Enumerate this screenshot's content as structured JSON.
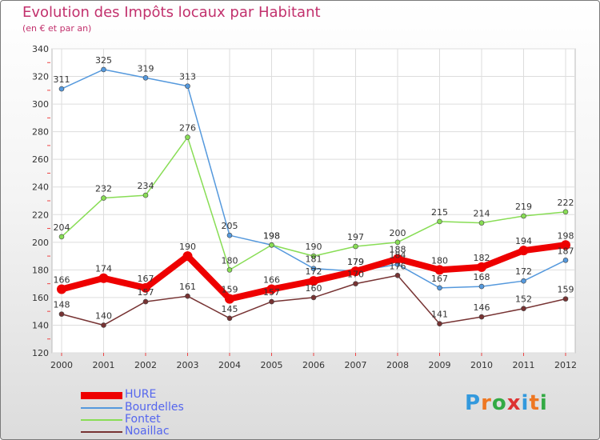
{
  "chart_data": {
    "type": "line",
    "title": "Evolution des Impôts locaux par Habitant",
    "subtitle": "(en € et par an)",
    "x": [
      "2000",
      "2001",
      "2002",
      "2003",
      "2004",
      "2005",
      "2006",
      "2007",
      "2008",
      "2009",
      "2010",
      "2011",
      "2012"
    ],
    "ylim": [
      120,
      340
    ],
    "yticks": [
      "120",
      "140",
      "160",
      "180",
      "200",
      "220",
      "240",
      "260",
      "280",
      "300",
      "320",
      "340"
    ],
    "grid": true,
    "legend_position": "bottom-left",
    "series": [
      {
        "name": "HURE",
        "color": "#ee0000",
        "values": [
          166,
          174,
          167,
          190,
          159,
          166,
          172,
          179,
          188,
          180,
          182,
          194,
          198
        ]
      },
      {
        "name": "Bourdelles",
        "color": "#5599dd",
        "values": [
          311,
          325,
          319,
          313,
          205,
          198,
          181,
          179,
          184,
          167,
          168,
          172,
          187
        ]
      },
      {
        "name": "Fontet",
        "color": "#88dd55",
        "values": [
          204,
          232,
          234,
          276,
          180,
          198,
          190,
          197,
          200,
          215,
          214,
          219,
          222
        ]
      },
      {
        "name": "Noaillac",
        "color": "#773333",
        "values": [
          148,
          140,
          157,
          161,
          145,
          157,
          160,
          170,
          176,
          141,
          146,
          152,
          159
        ]
      }
    ]
  },
  "logo": {
    "letters": [
      "P",
      "r",
      "o",
      "x",
      "i",
      "t",
      "i"
    ],
    "colors": [
      "#3399dd",
      "#ee7722",
      "#33aa44",
      "#dd3333",
      "#3399dd",
      "#ee7722",
      "#33aa44"
    ]
  }
}
